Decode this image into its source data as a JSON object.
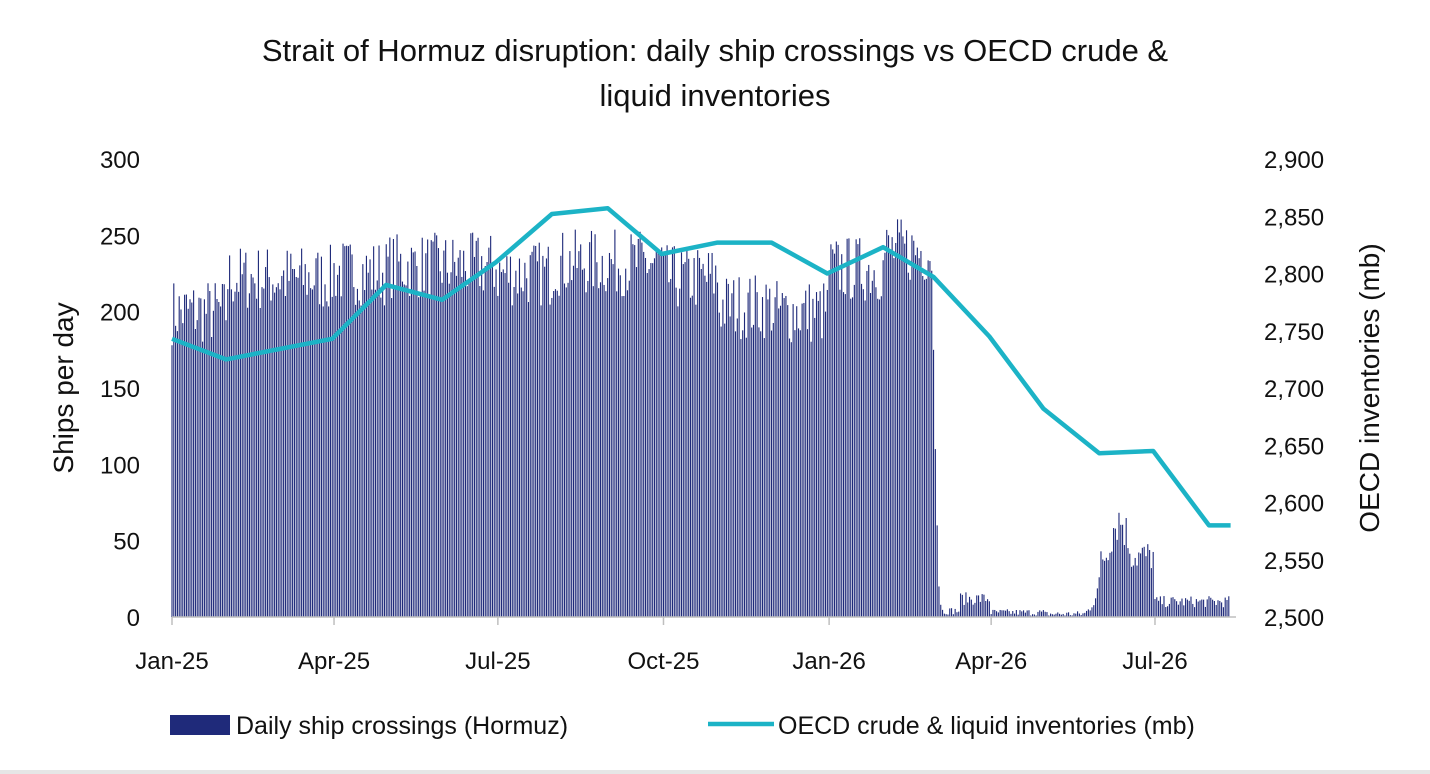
{
  "chart_data": {
    "type": "bar+line",
    "title_lines": [
      "Strait of Hormuz disruption: daily ship crossings vs OECD crude &",
      "liquid inventories"
    ],
    "ylabel_left": "Ships per day",
    "ylabel_right": "OECD inventories (mb)",
    "y_left": {
      "range": [
        0,
        300
      ],
      "ticks": [
        0,
        50,
        100,
        150,
        200,
        250,
        300
      ],
      "tick_labels": [
        "0",
        "50",
        "100",
        "150",
        "200",
        "250",
        "300"
      ]
    },
    "y_right": {
      "range": [
        2500,
        2900
      ],
      "ticks": [
        2500,
        2550,
        2600,
        2650,
        2700,
        2750,
        2800,
        2850,
        2900
      ],
      "tick_labels": [
        "2,500",
        "2,550",
        "2,600",
        "2,650",
        "2,700",
        "2,750",
        "2,800",
        "2,850",
        "2,900"
      ]
    },
    "x_axis": {
      "type": "date",
      "range": [
        "2025-01-01",
        "2026-08-15"
      ],
      "ticks": [
        "2025-01-01",
        "2025-04-01",
        "2025-07-01",
        "2025-10-01",
        "2026-01-01",
        "2026-04-01",
        "2026-07-01"
      ],
      "tick_labels": [
        "Jan-25",
        "Apr-25",
        "Jul-25",
        "Oct-25",
        "Jan-26",
        "Apr-26",
        "Jul-26"
      ]
    },
    "series": [
      {
        "name": "Daily ship crossings (Hormuz)",
        "kind": "bar",
        "axis": "left",
        "color": "#1f2a7a",
        "period_levels": [
          {
            "start": "2025-01-01",
            "end": "2025-01-31",
            "value": 200
          },
          {
            "start": "2025-02-01",
            "end": "2025-03-31",
            "value": 222
          },
          {
            "start": "2025-04-01",
            "end": "2025-04-30",
            "value": 226
          },
          {
            "start": "2025-05-01",
            "end": "2025-06-30",
            "value": 230
          },
          {
            "start": "2025-07-01",
            "end": "2025-07-31",
            "value": 225
          },
          {
            "start": "2025-08-01",
            "end": "2025-09-30",
            "value": 232
          },
          {
            "start": "2025-10-01",
            "end": "2025-10-31",
            "value": 222
          },
          {
            "start": "2025-11-01",
            "end": "2025-11-30",
            "value": 204
          },
          {
            "start": "2025-12-01",
            "end": "2025-12-31",
            "value": 200
          },
          {
            "start": "2026-01-01",
            "end": "2026-01-31",
            "value": 228
          },
          {
            "start": "2026-02-01",
            "end": "2026-02-28",
            "value": 240
          },
          {
            "start": "2026-03-01",
            "end": "2026-03-14",
            "value": 4
          },
          {
            "start": "2026-03-15",
            "end": "2026-03-31",
            "value": 12
          },
          {
            "start": "2026-04-01",
            "end": "2026-04-30",
            "value": 3
          },
          {
            "start": "2026-05-01",
            "end": "2026-05-31",
            "value": 2
          },
          {
            "start": "2026-06-01",
            "end": "2026-06-30",
            "value": 40
          },
          {
            "start": "2026-07-01",
            "end": "2026-08-11",
            "value": 10
          }
        ],
        "peak": {
          "date": "2026-06-11",
          "value": 64
        },
        "drop": [
          {
            "date": "2026-02-28",
            "value": 175
          },
          {
            "date": "2026-03-01",
            "value": 110
          },
          {
            "date": "2026-03-02",
            "value": 60
          },
          {
            "date": "2026-03-03",
            "value": 20
          },
          {
            "date": "2026-03-04",
            "value": 8
          }
        ]
      },
      {
        "name": "OECD crude & liquid inventories (mb)",
        "kind": "line",
        "axis": "right",
        "color": "#1cb3c6",
        "x": [
          "2025-01-01",
          "2025-01-31",
          "2025-03-31",
          "2025-04-30",
          "2025-05-31",
          "2025-06-30",
          "2025-07-31",
          "2025-08-31",
          "2025-09-30",
          "2025-10-31",
          "2025-11-30",
          "2025-12-31",
          "2026-01-31",
          "2026-02-28",
          "2026-03-31",
          "2026-04-30",
          "2026-05-31",
          "2026-06-30",
          "2026-07-31",
          "2026-08-31"
        ],
        "y": [
          2743,
          2725,
          2743,
          2790,
          2777,
          2810,
          2852,
          2857,
          2817,
          2827,
          2827,
          2800,
          2823,
          2797,
          2745,
          2682,
          2643,
          2645,
          2580,
          2580
        ],
        "x_end": "2026-08-12"
      }
    ],
    "legend": {
      "position": "bottom",
      "items": [
        "Daily ship crossings (Hormuz)",
        "OECD crude & liquid inventories (mb)"
      ]
    },
    "grid": false
  }
}
